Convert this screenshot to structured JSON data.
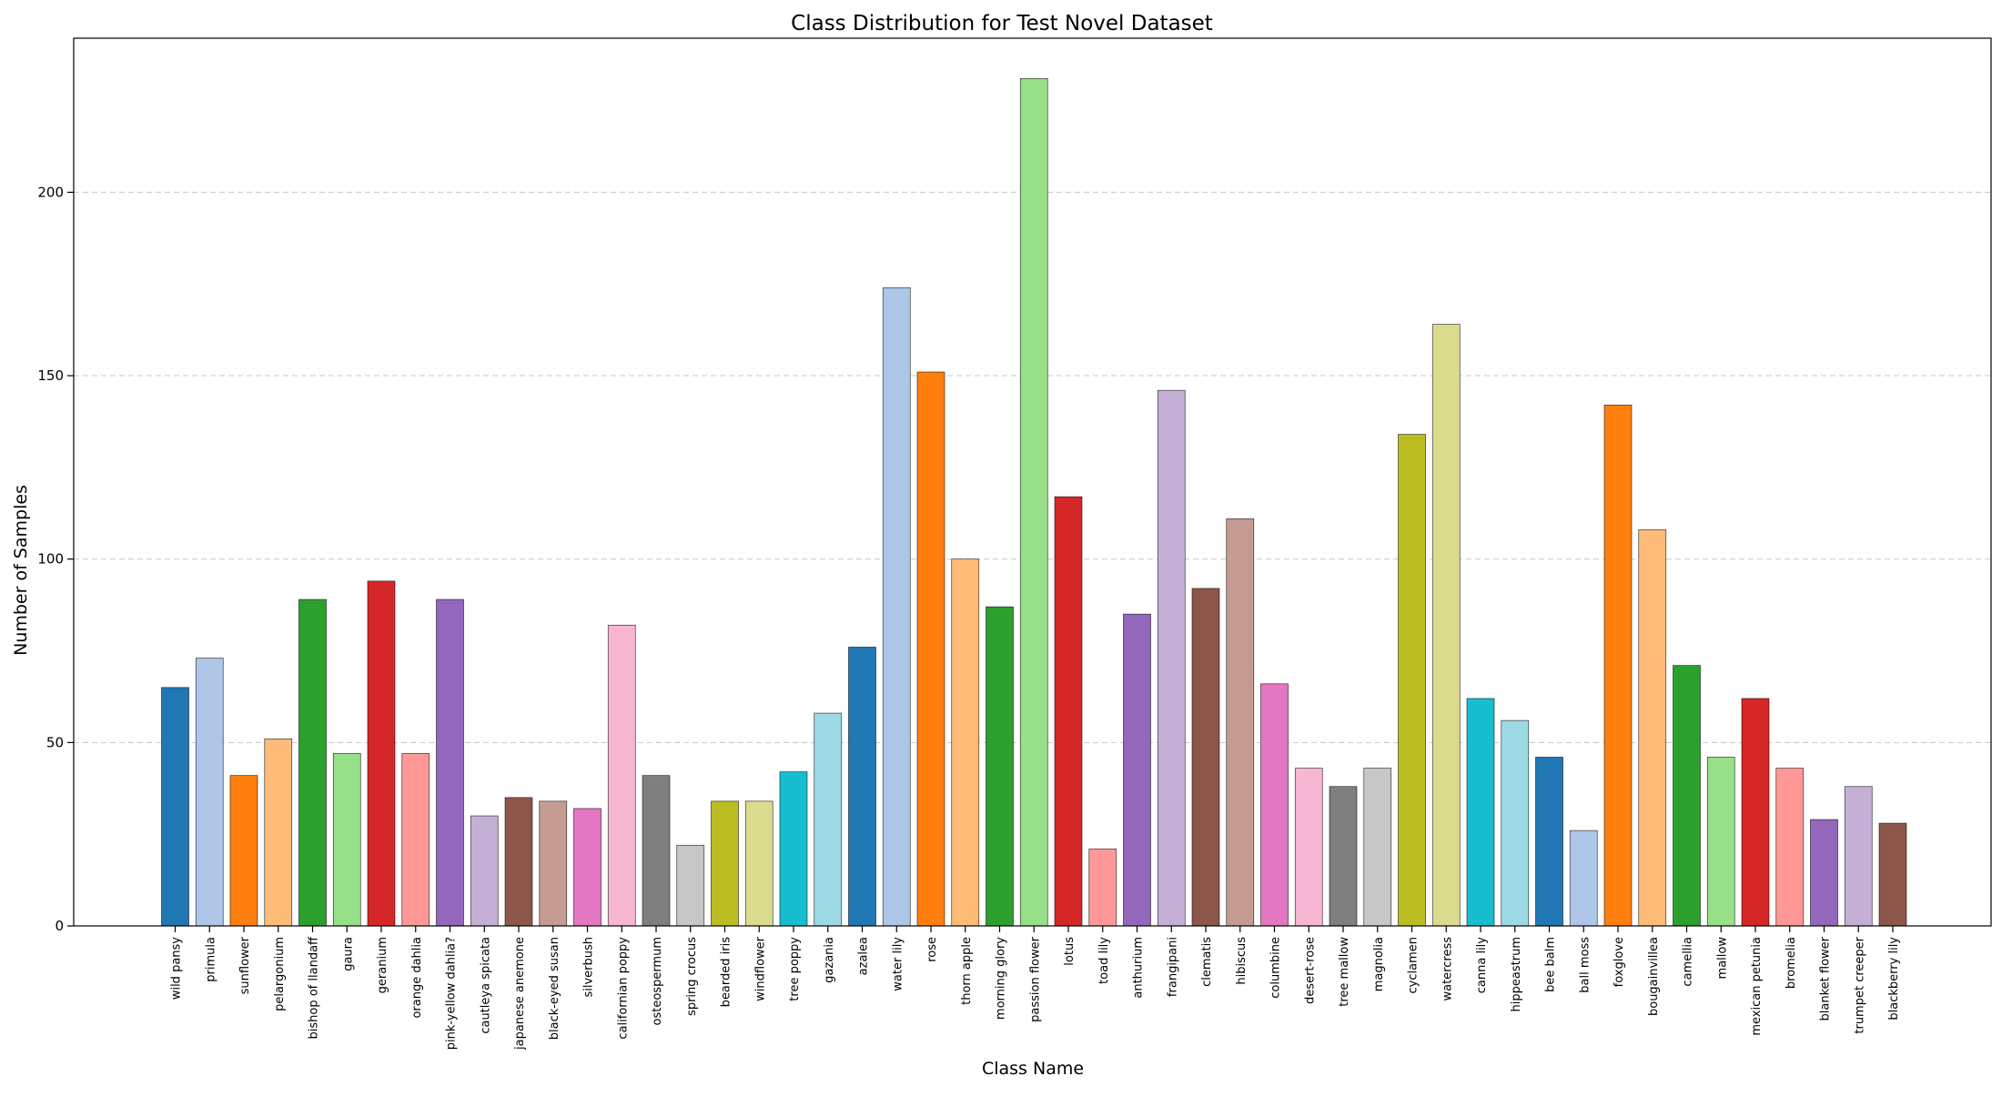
{
  "chart_data": {
    "type": "bar",
    "title": "Class Distribution for Test Novel Dataset",
    "xlabel": "Class Name",
    "ylabel": "Number of Samples",
    "ylim": [
      0,
      242
    ],
    "yticks": [
      0,
      50,
      100,
      150,
      200
    ],
    "grid": "y-dashed",
    "categories": [
      "wild pansy",
      "primula",
      "sunflower",
      "pelargonium",
      "bishop of llandaff",
      "gaura",
      "geranium",
      "orange dahlia",
      "pink-yellow dahlia?",
      "cautleya spicata",
      "japanese anemone",
      "black-eyed susan",
      "silverbush",
      "californian poppy",
      "osteospermum",
      "spring crocus",
      "bearded iris",
      "windflower",
      "tree poppy",
      "gazania",
      "azalea",
      "water lily",
      "rose",
      "thorn apple",
      "morning glory",
      "passion flower",
      "lotus",
      "toad lily",
      "anthurium",
      "frangipani",
      "clematis",
      "hibiscus",
      "columbine",
      "desert-rose",
      "tree mallow",
      "magnolia",
      "cyclamen",
      "watercress",
      "canna lily",
      "hippeastrum",
      "bee balm",
      "ball moss",
      "foxglove",
      "bougainvillea",
      "camellia",
      "mallow",
      "mexican petunia",
      "bromelia",
      "blanket flower",
      "trumpet creeper",
      "blackberry lily"
    ],
    "values": [
      65,
      73,
      41,
      51,
      89,
      47,
      94,
      47,
      89,
      30,
      35,
      34,
      32,
      82,
      41,
      22,
      34,
      34,
      42,
      58,
      76,
      174,
      151,
      100,
      87,
      231,
      117,
      21,
      85,
      146,
      92,
      111,
      66,
      43,
      38,
      43,
      134,
      164,
      62,
      56,
      46,
      26,
      142,
      108,
      71,
      46,
      62,
      43,
      29,
      38,
      28
    ],
    "colors": [
      "#1f77b4",
      "#aec7e8",
      "#ff7f0e",
      "#ffbb78",
      "#2ca02c",
      "#98df8a",
      "#d62728",
      "#ff9896",
      "#9467bd",
      "#c5b0d5",
      "#8c564b",
      "#c49c94",
      "#e377c2",
      "#f7b6d2",
      "#7f7f7f",
      "#c7c7c7",
      "#bcbd22",
      "#dbdb8d",
      "#17becf",
      "#9edae5"
    ]
  }
}
